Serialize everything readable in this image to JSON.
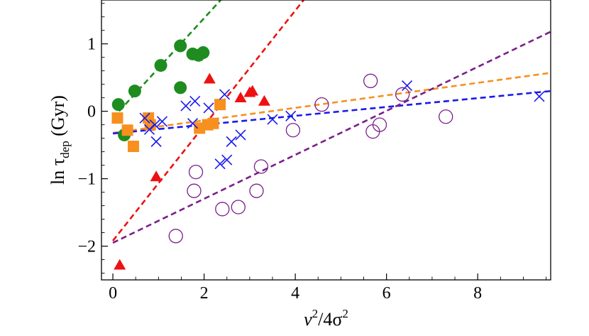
{
  "chart_data": {
    "type": "scatter",
    "title": "",
    "xlabel": "v²/4σ²",
    "ylabel": "ln τdep (Gyr)",
    "xlabel_parts": {
      "base": "v",
      "sup1": "2",
      "mid": "/4σ",
      "sup2": "2"
    },
    "ylabel_parts": {
      "pre": "ln τ",
      "sub": "dep",
      "post": " (Gyr)"
    },
    "xlim": [
      -0.25,
      9.6
    ],
    "ylim": [
      -2.5,
      1.65
    ],
    "x_ticks": [
      0,
      2,
      4,
      6,
      8
    ],
    "y_ticks": [
      -2,
      -1,
      0,
      1
    ],
    "x_tick_labels": [
      "0",
      "2",
      "4",
      "6",
      "8"
    ],
    "y_tick_labels": [
      "−2",
      "−1",
      "0",
      "1"
    ],
    "grid": false,
    "series": [
      {
        "marker": "filled-circle",
        "color": "#1e8c1e",
        "points": [
          [
            0.12,
            0.1
          ],
          [
            0.25,
            -0.35
          ],
          [
            0.48,
            0.3
          ],
          [
            1.05,
            0.68
          ],
          [
            1.48,
            0.97
          ],
          [
            1.48,
            0.35
          ],
          [
            1.75,
            0.85
          ],
          [
            1.88,
            0.83
          ],
          [
            1.98,
            0.87
          ]
        ],
        "fit": {
          "x": [
            0,
            2.5
          ],
          "y": [
            -0.1,
            1.75
          ]
        }
      },
      {
        "marker": "filled-triangle",
        "color": "#ee1111",
        "points": [
          [
            0.15,
            -2.28
          ],
          [
            0.95,
            -0.97
          ],
          [
            2.12,
            0.48
          ],
          [
            2.8,
            0.2
          ],
          [
            3.0,
            0.28
          ],
          [
            3.06,
            0.3
          ],
          [
            3.32,
            0.15
          ]
        ],
        "fit": {
          "x": [
            0,
            4.3
          ],
          "y": [
            -1.92,
            1.75
          ]
        }
      },
      {
        "marker": "filled-square",
        "color": "#f7901e",
        "points": [
          [
            0.1,
            -0.1
          ],
          [
            0.32,
            -0.28
          ],
          [
            0.45,
            -0.52
          ],
          [
            0.78,
            -0.1
          ],
          [
            0.82,
            -0.2
          ],
          [
            1.9,
            -0.25
          ],
          [
            2.08,
            -0.2
          ],
          [
            2.2,
            -0.18
          ],
          [
            2.35,
            0.1
          ]
        ],
        "fit": {
          "x": [
            0,
            9.6
          ],
          "y": [
            -0.32,
            0.57
          ]
        }
      },
      {
        "marker": "x",
        "color": "#1a1aee",
        "points": [
          [
            0.7,
            -0.1
          ],
          [
            0.8,
            -0.27
          ],
          [
            0.92,
            -0.2
          ],
          [
            0.95,
            -0.45
          ],
          [
            1.08,
            -0.15
          ],
          [
            1.6,
            0.08
          ],
          [
            1.75,
            -0.18
          ],
          [
            1.8,
            0.15
          ],
          [
            2.1,
            0.05
          ],
          [
            2.35,
            -0.78
          ],
          [
            2.45,
            0.25
          ],
          [
            2.5,
            -0.72
          ],
          [
            2.6,
            -0.45
          ],
          [
            2.8,
            -0.35
          ],
          [
            3.5,
            -0.12
          ],
          [
            3.9,
            -0.07
          ],
          [
            6.45,
            0.38
          ],
          [
            9.35,
            0.22
          ]
        ],
        "fit": {
          "x": [
            0,
            9.6
          ],
          "y": [
            -0.33,
            0.3
          ]
        }
      },
      {
        "marker": "open-circle",
        "color": "#7a1f8a",
        "points": [
          [
            1.38,
            -1.85
          ],
          [
            1.78,
            -1.18
          ],
          [
            1.82,
            -0.9
          ],
          [
            2.4,
            -1.45
          ],
          [
            2.75,
            -1.42
          ],
          [
            3.15,
            -1.18
          ],
          [
            3.25,
            -0.82
          ],
          [
            3.95,
            -0.28
          ],
          [
            4.58,
            0.1
          ],
          [
            5.65,
            0.45
          ],
          [
            5.7,
            -0.3
          ],
          [
            5.85,
            -0.2
          ],
          [
            6.35,
            0.25
          ],
          [
            7.3,
            -0.08
          ]
        ],
        "fit": {
          "x": [
            0,
            9.6
          ],
          "y": [
            -1.95,
            1.18
          ]
        }
      }
    ]
  }
}
